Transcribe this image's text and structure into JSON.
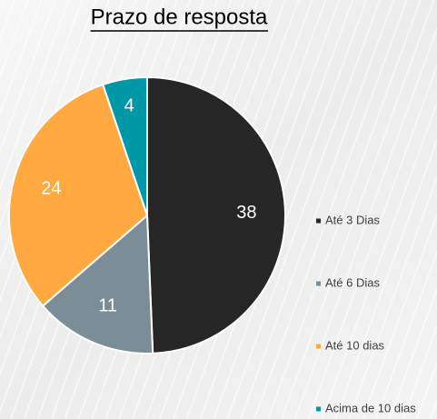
{
  "chart_data": {
    "type": "pie",
    "title": "Prazo de resposta",
    "categories": [
      "Até 3 Dias",
      "Até 6 Dias",
      "Até 10 dias",
      "Acima de 10 dias"
    ],
    "values": [
      38,
      11,
      24,
      4
    ],
    "colors": [
      "#262626",
      "#7b8e98",
      "#ffa940",
      "#0097a7"
    ],
    "legend": "right"
  }
}
